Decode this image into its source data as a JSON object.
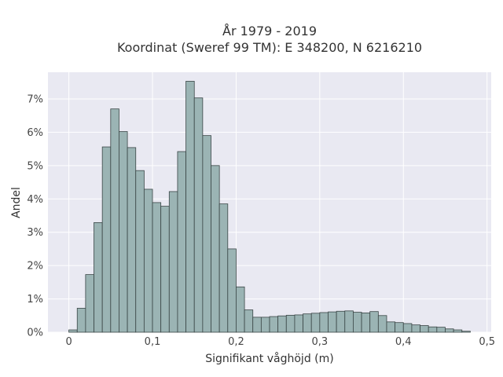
{
  "chart_data": {
    "type": "bar",
    "title_lines": [
      "År 1979 - 2019",
      "Koordinat (Sweref 99 TM): E 348200, N 6216210"
    ],
    "xlabel": "Signifikant våghöjd (m)",
    "ylabel": "Andel",
    "x_ticks": [
      "0",
      "0,1",
      "0,2",
      "0,3",
      "0,4",
      "0,5"
    ],
    "y_ticks": [
      "0%",
      "1%",
      "2%",
      "3%",
      "4%",
      "5%",
      "6%",
      "7%"
    ],
    "xlim": [
      -0.025,
      0.505
    ],
    "ylim": [
      0,
      7.8
    ],
    "bin_width": 0.01,
    "bin_starts": [
      0.0,
      0.01,
      0.02,
      0.03,
      0.04,
      0.05,
      0.06,
      0.07,
      0.08,
      0.09,
      0.1,
      0.11,
      0.12,
      0.13,
      0.14,
      0.15,
      0.16,
      0.17,
      0.18,
      0.19,
      0.2,
      0.21,
      0.22,
      0.23,
      0.24,
      0.25,
      0.26,
      0.27,
      0.28,
      0.29,
      0.3,
      0.31,
      0.32,
      0.33,
      0.34,
      0.35,
      0.36,
      0.37,
      0.38,
      0.39,
      0.4,
      0.41,
      0.42,
      0.43,
      0.44,
      0.45,
      0.46,
      0.47
    ],
    "values": [
      0.07,
      0.72,
      1.73,
      3.29,
      5.56,
      6.7,
      6.02,
      5.54,
      4.85,
      4.29,
      3.89,
      3.78,
      4.22,
      5.42,
      7.53,
      7.03,
      5.9,
      5.0,
      3.85,
      2.5,
      1.36,
      0.67,
      0.45,
      0.45,
      0.47,
      0.49,
      0.51,
      0.52,
      0.55,
      0.57,
      0.59,
      0.61,
      0.63,
      0.64,
      0.6,
      0.58,
      0.62,
      0.5,
      0.31,
      0.29,
      0.26,
      0.22,
      0.2,
      0.16,
      0.15,
      0.1,
      0.07,
      0.03
    ],
    "grid": true,
    "colors": {
      "bar_fill": "#9bb4b4",
      "bar_stroke": "#3a4646",
      "plot_bg": "#e9e9f2",
      "grid": "#ffffff"
    }
  }
}
